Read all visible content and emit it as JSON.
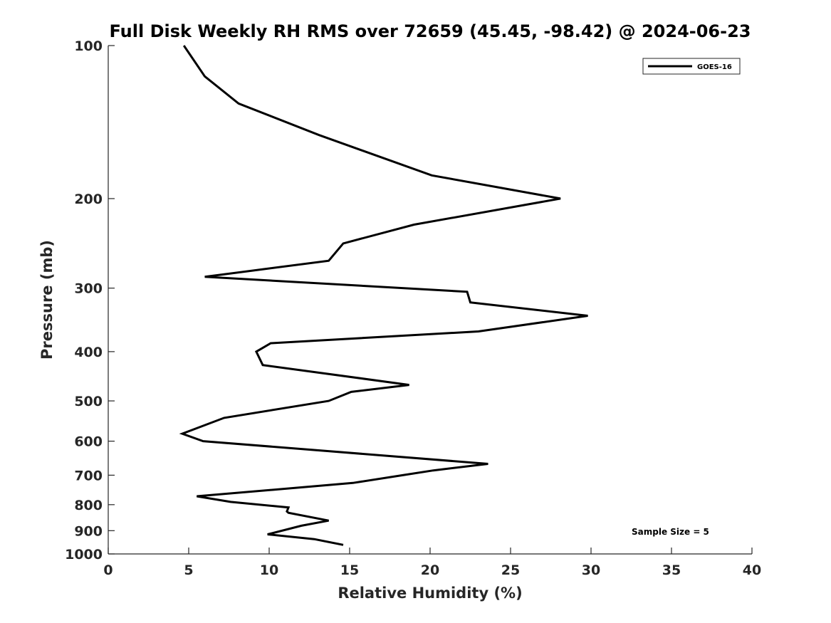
{
  "chart_data": {
    "type": "line",
    "title": "Full Disk Weekly RH RMS over 72659 (45.45, -98.42) @ 2024-06-23",
    "xlabel": "Relative Humidity (%)",
    "ylabel": "Pressure (mb)",
    "xlim": [
      0,
      40
    ],
    "ylim": [
      100,
      1000
    ],
    "y_scale": "log",
    "y_reversed": true,
    "grid": false,
    "legend_position": "top-right",
    "x_ticks": [
      "0",
      "5",
      "10",
      "15",
      "20",
      "25",
      "30",
      "35",
      "40"
    ],
    "y_ticks": [
      "100",
      "200",
      "300",
      "400",
      "500",
      "600",
      "700",
      "800",
      "900",
      "1000"
    ],
    "series": [
      {
        "name": "GOES-16",
        "color": "#000000",
        "x": [
          4.7,
          6.0,
          8.1,
          13.1,
          20.1,
          28.1,
          19.0,
          14.6,
          13.7,
          6.0,
          22.3,
          22.5,
          29.8,
          23.0,
          10.1,
          9.2,
          9.6,
          18.7,
          15.1,
          13.7,
          7.2,
          4.6,
          5.9,
          23.6,
          20.2,
          18.3,
          15.2,
          5.5,
          7.6,
          11.2,
          11.1,
          11.2,
          13.7,
          12.0,
          9.9,
          12.8,
          14.6
        ],
        "y": [
          100,
          115,
          130,
          150,
          180,
          200,
          225,
          245,
          265,
          285,
          305,
          320,
          340,
          365,
          385,
          400,
          425,
          465,
          480,
          500,
          540,
          580,
          600,
          665,
          685,
          700,
          725,
          770,
          790,
          810,
          825,
          830,
          860,
          880,
          915,
          935,
          960
        ]
      }
    ],
    "annotations": [
      "Sample Size = 5"
    ]
  }
}
